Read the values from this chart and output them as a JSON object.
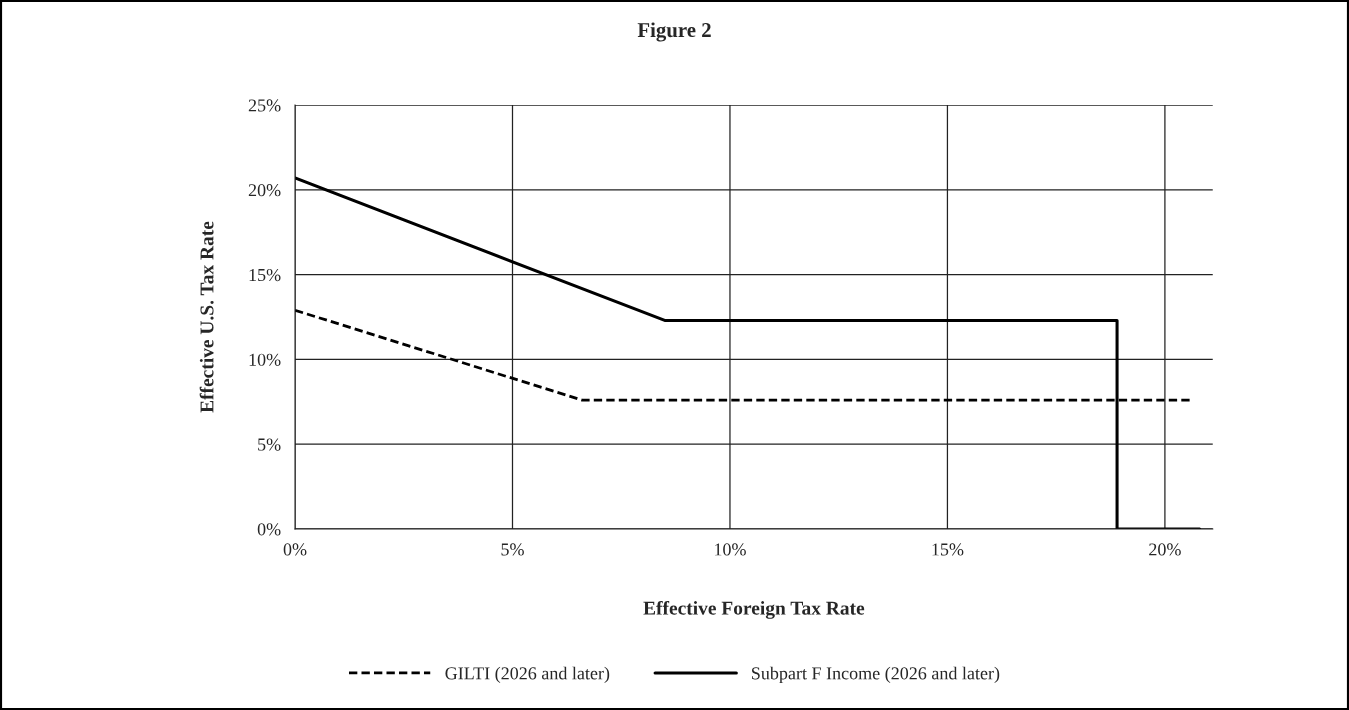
{
  "chart_data": {
    "type": "line",
    "title": "Figure 2",
    "xlabel": "Effective Foreign Tax Rate",
    "ylabel": "Effective U.S. Tax Rate",
    "series": [
      {
        "name": "GILTI (2026 and later)",
        "color": "#000000",
        "line_style": "dashed",
        "x": [
          0,
          6.6,
          20.6
        ],
        "values": [
          12.9,
          7.6,
          7.6
        ]
      },
      {
        "name": "Subpart F Income (2026 and later)",
        "color": "#000000",
        "line_style": "solid",
        "x": [
          0,
          8.5,
          18.9,
          18.9,
          20.8
        ],
        "values": [
          20.7,
          12.3,
          12.3,
          0,
          0
        ]
      }
    ],
    "xlim": [
      0,
      21.1
    ],
    "ylim": [
      0,
      25
    ],
    "xticks": [
      {
        "value": 0,
        "label": "0%"
      },
      {
        "value": 5,
        "label": "5%"
      },
      {
        "value": 10,
        "label": "10%"
      },
      {
        "value": 15,
        "label": "15%"
      },
      {
        "value": 20,
        "label": "20%"
      }
    ],
    "yticks": [
      {
        "value": 0,
        "label": "0%"
      },
      {
        "value": 5,
        "label": "5%"
      },
      {
        "value": 10,
        "label": "10%"
      },
      {
        "value": 15,
        "label": "15%"
      },
      {
        "value": 20,
        "label": "20%"
      },
      {
        "value": 25,
        "label": "25%"
      }
    ],
    "grid": true,
    "legend": "bottom",
    "marker": "none"
  }
}
